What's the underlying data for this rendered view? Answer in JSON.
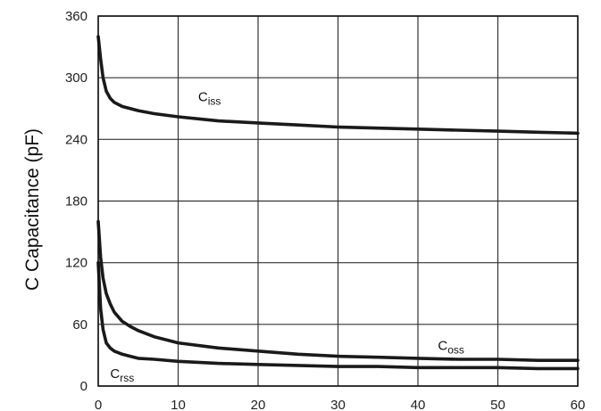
{
  "chart_data": {
    "type": "line",
    "title": "",
    "xlabel": "",
    "ylabel": "C Capacitance (pF)",
    "xlim": [
      0,
      60
    ],
    "ylim": [
      0,
      360
    ],
    "x_ticks": [
      0,
      10,
      20,
      30,
      40,
      50,
      60
    ],
    "y_ticks": [
      0,
      60,
      120,
      180,
      240,
      300,
      360
    ],
    "grid": true,
    "legend": "none",
    "series": [
      {
        "name": "C",
        "subscript": "iss",
        "x": [
          0,
          0.3,
          0.6,
          1,
          1.5,
          2,
          3,
          4,
          5,
          7,
          10,
          15,
          20,
          25,
          30,
          35,
          40,
          45,
          50,
          55,
          60
        ],
        "y": [
          340,
          318,
          300,
          287,
          280,
          276,
          272,
          270,
          268,
          265,
          262,
          258,
          256,
          254,
          252,
          251,
          250,
          249,
          248,
          247,
          246
        ]
      },
      {
        "name": "C",
        "subscript": "oss",
        "x": [
          0,
          0.3,
          0.6,
          1,
          1.5,
          2,
          3,
          4,
          5,
          7,
          10,
          15,
          20,
          25,
          30,
          35,
          40,
          45,
          50,
          55,
          60
        ],
        "y": [
          160,
          125,
          105,
          90,
          80,
          72,
          63,
          58,
          54,
          48,
          42,
          37,
          34,
          31,
          29,
          28,
          27,
          26,
          26,
          25,
          25
        ]
      },
      {
        "name": "C",
        "subscript": "rss",
        "x": [
          0,
          0.3,
          0.6,
          1,
          1.5,
          2,
          3,
          4,
          5,
          7,
          10,
          15,
          20,
          25,
          30,
          35,
          40,
          45,
          50,
          55,
          60
        ],
        "y": [
          120,
          75,
          55,
          42,
          37,
          34,
          31,
          29,
          27,
          26,
          24,
          22,
          21,
          20,
          19,
          19,
          18,
          18,
          18,
          17,
          17
        ]
      }
    ]
  }
}
